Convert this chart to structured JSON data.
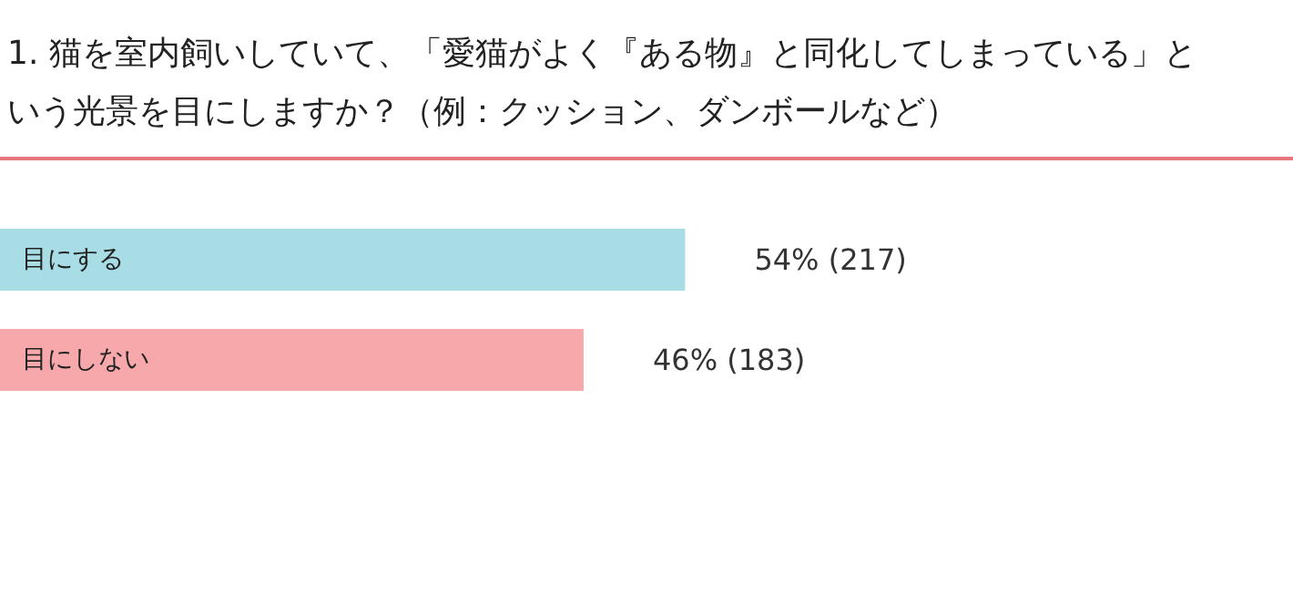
{
  "chart_data": {
    "type": "bar",
    "orientation": "horizontal",
    "title": "1. 猫を室内飼いしていて、「愛猫がよく『ある物』と同化してしまっている」という光景を目にしますか？（例：クッション、ダンボールなど）",
    "categories": [
      "目にする",
      "目にしない"
    ],
    "values": [
      54,
      46
    ],
    "colors": [
      "#a8dde6",
      "#f7a8aa"
    ],
    "value_labels": [
      "54% (217)",
      "46% (183)"
    ],
    "tick_labels": "y"
  }
}
